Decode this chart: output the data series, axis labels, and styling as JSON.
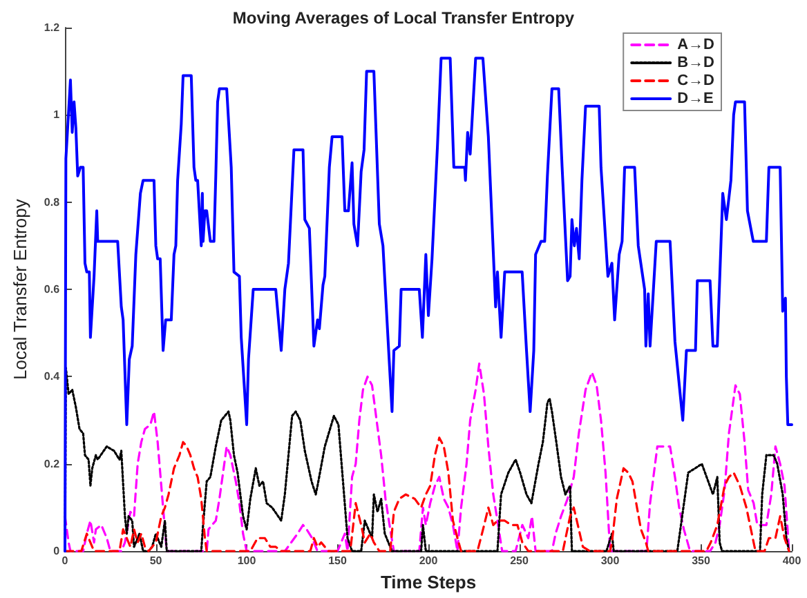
{
  "chart_data": {
    "type": "line",
    "title": "Moving Averages of Local Transfer Entropy",
    "xlabel": "Time Steps",
    "ylabel": "Local Transfer Entropy",
    "xlim": [
      0,
      400
    ],
    "xticks": [
      0,
      50,
      100,
      150,
      200,
      250,
      300,
      350,
      400
    ],
    "ylim": [
      0,
      1.2
    ],
    "yticks": [
      0,
      0.2,
      0.4,
      0.6,
      0.8,
      1,
      1.2
    ],
    "grid": false,
    "legend": "top right",
    "series": [
      {
        "name": "A→D",
        "color": "#ff00ff",
        "line_style": "dashed",
        "x": [
          0,
          2,
          3,
          10,
          12,
          14,
          16,
          17,
          20,
          23,
          25,
          31,
          33,
          36,
          38,
          40,
          42,
          44,
          47,
          49,
          51,
          53,
          55,
          56,
          78,
          79,
          81,
          83,
          85,
          87,
          89,
          91,
          94,
          96,
          98,
          100,
          117,
          121,
          128,
          131,
          133,
          136,
          139,
          150,
          154,
          155.5,
          156.7,
          158,
          160,
          162,
          164,
          166.5,
          169,
          171.5,
          174,
          176.4,
          179,
          181,
          195,
          197,
          198.6,
          201,
          203.6,
          206,
          208.5,
          211,
          213.5,
          216,
          218,
          221,
          223,
          226,
          228,
          230.6,
          233,
          235.7,
          238,
          240.6,
          248,
          251.7,
          255,
          257,
          259,
          268,
          270,
          273,
          276.6,
          280,
          282.8,
          286.5,
          290,
          292.6,
          295,
          297.5,
          300,
          320,
          322,
          326,
          333,
          335.7,
          338,
          340.6,
          344,
          355,
          358,
          360.3,
          363,
          365.4,
          369,
          371.4,
          374,
          376,
          379,
          381,
          383.7,
          386,
          388.7,
          391,
          393.6,
          396,
          398.5
        ],
        "values": [
          0.08,
          0.02,
          0,
          0,
          0.04,
          0.07,
          0.02,
          0.05,
          0.06,
          0.03,
          0,
          0,
          0.02,
          0.09,
          0.08,
          0.2,
          0.25,
          0.28,
          0.29,
          0.32,
          0.25,
          0.15,
          0.05,
          0,
          0,
          0.05,
          0.06,
          0.07,
          0.12,
          0.18,
          0.24,
          0.22,
          0.16,
          0.11,
          0.04,
          0,
          0,
          0,
          0.04,
          0.06,
          0.05,
          0.03,
          0,
          0,
          0.04,
          0,
          0.08,
          0.17,
          0.2,
          0.3,
          0.37,
          0.4,
          0.38,
          0.3,
          0.22,
          0.12,
          0.05,
          0,
          0,
          0.1,
          0.06,
          0.11,
          0.15,
          0.17,
          0.12,
          0.1,
          0.06,
          0,
          0.1,
          0.2,
          0.3,
          0.37,
          0.43,
          0.36,
          0.24,
          0.13,
          0.07,
          0,
          0,
          0.06,
          0.03,
          0.08,
          0,
          0,
          0.04,
          0.08,
          0.12,
          0.17,
          0.27,
          0.37,
          0.41,
          0.38,
          0.3,
          0.18,
          0,
          0,
          0.11,
          0.24,
          0.24,
          0.17,
          0.1,
          0.05,
          0,
          0,
          0.02,
          0.06,
          0.14,
          0.27,
          0.38,
          0.36,
          0.25,
          0.14,
          0.11,
          0.06,
          0.06,
          0.06,
          0.13,
          0.24,
          0.2,
          0.15,
          0
        ]
      },
      {
        "name": "B→D",
        "color": "#000000",
        "line_style": "dotted",
        "x": [
          0,
          0.5,
          2,
          4,
          6,
          8,
          10,
          11,
          13,
          14,
          15,
          17,
          18,
          23,
          27,
          30,
          31,
          33,
          34,
          35,
          37,
          38,
          41,
          43,
          46,
          48,
          50,
          53,
          55,
          56,
          75,
          76,
          78,
          80,
          83,
          86,
          88,
          90,
          91,
          93,
          95,
          98,
          100,
          102,
          105,
          107,
          109,
          111,
          114,
          119,
          121,
          125,
          127,
          129.5,
          132,
          135.7,
          138,
          139,
          143,
          148,
          150.5,
          153,
          155.5,
          158,
          163,
          165,
          169,
          170,
          172,
          174,
          176,
          178,
          180,
          196,
          197,
          198.6,
          238,
          240,
          244,
          248,
          250.5,
          254,
          256.7,
          258,
          260.6,
          263,
          265.5,
          266.7,
          268,
          270.4,
          273,
          275.4,
          278,
          278.6,
          279,
          298,
          301,
          302,
          337,
          339,
          343,
          346.8,
          350.5,
          354,
          356.6,
          359,
          360.3,
          361.6,
          382.5,
          383.7,
          386,
          390,
          392,
          395,
          397,
          398.5
        ],
        "values": [
          0,
          0.42,
          0.36,
          0.37,
          0.33,
          0.28,
          0.27,
          0.22,
          0.21,
          0.15,
          0.19,
          0.22,
          0.21,
          0.24,
          0.23,
          0.21,
          0.23,
          0.08,
          0.04,
          0.08,
          0.07,
          0.01,
          0.04,
          0,
          0,
          0.01,
          0.04,
          0.01,
          0.07,
          0,
          0,
          0.06,
          0.16,
          0.17,
          0.24,
          0.3,
          0.31,
          0.32,
          0.3,
          0.22,
          0.18,
          0.08,
          0.05,
          0.12,
          0.19,
          0.15,
          0.16,
          0.11,
          0.1,
          0.07,
          0.13,
          0.31,
          0.32,
          0.3,
          0.23,
          0.16,
          0.13,
          0.15,
          0.24,
          0.31,
          0.29,
          0.16,
          0.03,
          0,
          0,
          0.07,
          0.03,
          0.13,
          0.09,
          0.12,
          0.04,
          0.02,
          0,
          0,
          0.06,
          0,
          0,
          0.13,
          0.18,
          0.21,
          0.18,
          0.13,
          0.11,
          0.14,
          0.2,
          0.25,
          0.34,
          0.35,
          0.32,
          0.25,
          0.17,
          0.13,
          0.15,
          0.05,
          0,
          0,
          0.04,
          0,
          0,
          0.06,
          0.18,
          0.19,
          0.2,
          0.16,
          0.13,
          0.17,
          0.02,
          0,
          0,
          0.13,
          0.22,
          0.22,
          0.2,
          0.13,
          0.03,
          0
        ]
      },
      {
        "name": "C→D",
        "color": "#ff0000",
        "line_style": "dashed",
        "x": [
          0,
          9,
          12,
          14,
          16,
          30,
          32,
          34,
          36,
          38,
          40,
          42,
          44,
          46,
          50,
          53,
          55,
          57,
          60,
          63,
          65,
          67,
          69,
          71,
          73,
          75,
          77,
          78,
          102,
          106,
          110,
          113,
          116,
          119,
          135,
          137,
          139,
          141,
          143,
          145,
          157,
          160,
          163,
          165,
          168,
          170,
          173,
          179,
          181,
          184,
          187.5,
          192.5,
          196,
          198.6,
          201,
          203.6,
          206,
          208.5,
          211,
          213.5,
          216,
          218,
          227,
          230.7,
          233,
          235.7,
          238,
          242,
          245.6,
          249,
          251.7,
          255,
          274,
          278,
          280,
          282.8,
          285,
          289,
          300,
          301,
          303.7,
          307.4,
          310,
          312.3,
          314.8,
          317,
          319.7,
          321,
          353,
          355.4,
          359,
          363,
          365.4,
          368,
          371.4,
          375,
          379,
          380,
          385,
          387.4,
          391,
          393.6,
          396,
          398.5
        ],
        "values": [
          0,
          0,
          0.04,
          0.02,
          0,
          0,
          0.05,
          0.03,
          0.01,
          0.05,
          0.02,
          0.04,
          0.01,
          0,
          0.02,
          0.08,
          0.1,
          0.13,
          0.19,
          0.22,
          0.25,
          0.24,
          0.22,
          0.19,
          0.17,
          0.12,
          0.03,
          0,
          0,
          0.03,
          0.03,
          0.01,
          0.01,
          0,
          0,
          0.03,
          0.01,
          0.02,
          0.01,
          0,
          0,
          0.11,
          0.06,
          0.02,
          0.04,
          0.02,
          0,
          0,
          0.09,
          0.12,
          0.13,
          0.12,
          0.1,
          0.13,
          0.15,
          0.22,
          0.26,
          0.24,
          0.18,
          0.07,
          0.03,
          0,
          0,
          0.06,
          0.1,
          0.06,
          0.07,
          0.07,
          0.06,
          0.06,
          0.02,
          0,
          0,
          0.08,
          0.1,
          0.05,
          0.01,
          0,
          0,
          0.02,
          0.12,
          0.19,
          0.18,
          0.16,
          0.1,
          0.05,
          0.02,
          0,
          0,
          0.02,
          0.06,
          0.15,
          0.17,
          0.18,
          0.15,
          0.1,
          0.02,
          0,
          0,
          0.03,
          0.03,
          0.08,
          0.03,
          0
        ]
      },
      {
        "name": "D→E",
        "color": "#0000ff",
        "line_style": "solid",
        "x": [
          0,
          0.5,
          3,
          4,
          5,
          6,
          7,
          8.5,
          10,
          11,
          12,
          13.4,
          14,
          16,
          17.5,
          18,
          29,
          31,
          32,
          34,
          35.4,
          37,
          39,
          41.5,
          43,
          49,
          50,
          51,
          52.4,
          54,
          55.4,
          58.5,
          60,
          61,
          62,
          64,
          65,
          69.5,
          71,
          72,
          73,
          75,
          75.6,
          76,
          77,
          78,
          80,
          82,
          83,
          84,
          85,
          89,
          91.5,
          93,
          96,
          97,
          100,
          101,
          103.6,
          116,
          119,
          121,
          123,
          126,
          131,
          132,
          134.5,
          137,
          139,
          140,
          142,
          143,
          145.5,
          147,
          152.5,
          154,
          156,
          158,
          159,
          161,
          163,
          164.6,
          166,
          170,
          173,
          175,
          178,
          180,
          181,
          184,
          185,
          195,
          196.7,
          198.6,
          200,
          202,
          205,
          207,
          212,
          214,
          220,
          220.4,
          221.6,
          223,
          226,
          230,
          233,
          237,
          238,
          240,
          242,
          251.6,
          254,
          256,
          258,
          259,
          262,
          264,
          265.5,
          268,
          271.7,
          273.6,
          276.6,
          278,
          279,
          280.3,
          281.5,
          283,
          284.5,
          286.5,
          294,
          295,
          298.8,
          301,
          302.5,
          305,
          306.6,
          308,
          313.5,
          315.5,
          319,
          319.7,
          321,
          322,
          325.4,
          333,
          335.7,
          340,
          342,
          347,
          348,
          355,
          356.6,
          359,
          362,
          364,
          366.5,
          368,
          369,
          374,
          375.6,
          378.8,
          386,
          387.4,
          393.6,
          395,
          396.5,
          397,
          397.8,
          400
        ],
        "values": [
          0,
          0.9,
          1.08,
          0.96,
          1.03,
          0.97,
          0.86,
          0.88,
          0.88,
          0.66,
          0.64,
          0.64,
          0.49,
          0.63,
          0.78,
          0.71,
          0.71,
          0.56,
          0.53,
          0.29,
          0.44,
          0.47,
          0.68,
          0.82,
          0.85,
          0.85,
          0.7,
          0.67,
          0.67,
          0.46,
          0.53,
          0.53,
          0.68,
          0.7,
          0.85,
          0.98,
          1.09,
          1.09,
          0.88,
          0.85,
          0.85,
          0.7,
          0.82,
          0.71,
          0.78,
          0.78,
          0.71,
          0.71,
          0.86,
          1.03,
          1.06,
          1.06,
          0.88,
          0.64,
          0.63,
          0.49,
          0.29,
          0.44,
          0.6,
          0.6,
          0.46,
          0.6,
          0.66,
          0.92,
          0.92,
          0.76,
          0.74,
          0.47,
          0.53,
          0.51,
          0.61,
          0.63,
          0.88,
          0.95,
          0.95,
          0.78,
          0.78,
          0.89,
          0.75,
          0.7,
          0.87,
          0.92,
          1.1,
          1.1,
          0.75,
          0.7,
          0.47,
          0.32,
          0.46,
          0.47,
          0.6,
          0.6,
          0.49,
          0.68,
          0.54,
          0.67,
          0.93,
          1.13,
          1.13,
          0.88,
          0.88,
          0.85,
          0.96,
          0.91,
          1.13,
          1.13,
          0.95,
          0.56,
          0.64,
          0.49,
          0.64,
          0.64,
          0.46,
          0.32,
          0.46,
          0.68,
          0.71,
          0.71,
          0.86,
          1.06,
          1.06,
          0.88,
          0.62,
          0.63,
          0.76,
          0.7,
          0.74,
          0.67,
          0.85,
          1.02,
          1.02,
          0.88,
          0.63,
          0.66,
          0.53,
          0.68,
          0.71,
          0.88,
          0.88,
          0.7,
          0.6,
          0.47,
          0.59,
          0.47,
          0.71,
          0.71,
          0.48,
          0.3,
          0.46,
          0.46,
          0.62,
          0.62,
          0.47,
          0.47,
          0.82,
          0.76,
          0.85,
          1,
          1.03,
          1.03,
          0.78,
          0.71,
          0.71,
          0.88,
          0.88,
          0.55,
          0.58,
          0.4,
          0.29,
          0.29
        ]
      }
    ]
  }
}
